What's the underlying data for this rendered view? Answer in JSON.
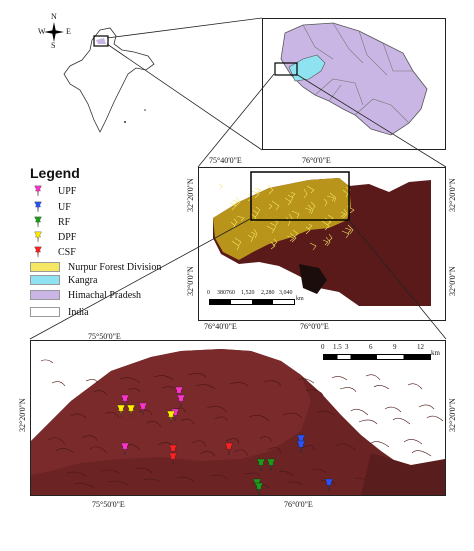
{
  "compass": {
    "n": "N",
    "s": "S",
    "e": "E",
    "w": "W"
  },
  "legend": {
    "title": "Legend",
    "items": [
      {
        "label": "UPF",
        "kind": "pin",
        "color": "#ff33cc"
      },
      {
        "label": "UF",
        "kind": "pin",
        "color": "#2a52ff"
      },
      {
        "label": "RF",
        "kind": "pin",
        "color": "#1a9e1a"
      },
      {
        "label": "DPF",
        "kind": "pin",
        "color": "#ffee00"
      },
      {
        "label": "CSF",
        "kind": "pin",
        "color": "#ff2020"
      },
      {
        "label": "Nurpur Forest Division",
        "kind": "swatch",
        "color": "#f5e663"
      },
      {
        "label": "Kangra",
        "kind": "swatch",
        "color": "#8fe3f0"
      },
      {
        "label": "Himachal Pradesh",
        "kind": "swatch",
        "color": "#c9b6e4"
      },
      {
        "label": "India",
        "kind": "swatch",
        "color": "#ffffff"
      }
    ]
  },
  "mid_map": {
    "lon_top": [
      "75°40'0\"E",
      "76°0'0\"E"
    ],
    "lon_bottom": [
      "76°40'0\"E",
      "76°0'0\"E"
    ],
    "lat_left": [
      "32°20'0\"N",
      "32°0'0\"N"
    ],
    "lat_right": [
      "32°20'0\"N",
      "32°0'0\"N"
    ],
    "scale_ticks": [
      "0",
      "380760",
      "1,520",
      "2,280",
      "3,040"
    ],
    "scale_unit": "km"
  },
  "bottom_map": {
    "lon_top": "75°50'0\"E",
    "lon_bottom": [
      "75°50'0\"E",
      "76°0'0\"E"
    ],
    "lat_left": "32°20'0\"N",
    "lat_right": "32°20'0\"N",
    "scale_ticks": [
      "0",
      "1.5",
      "3",
      "6",
      "9",
      "12"
    ],
    "scale_unit": "km",
    "sites": [
      {
        "type": "UPF",
        "color": "#ff33cc"
      },
      {
        "type": "UPF",
        "color": "#ff33cc"
      },
      {
        "type": "UPF",
        "color": "#ff33cc"
      },
      {
        "type": "UPF",
        "color": "#ff33cc"
      },
      {
        "type": "UPF",
        "color": "#ff33cc"
      },
      {
        "type": "UPF",
        "color": "#ff33cc"
      },
      {
        "type": "DPF",
        "color": "#ffee00"
      },
      {
        "type": "DPF",
        "color": "#ffee00"
      },
      {
        "type": "DPF",
        "color": "#ffee00"
      },
      {
        "type": "CSF",
        "color": "#ff2020"
      },
      {
        "type": "CSF",
        "color": "#ff2020"
      },
      {
        "type": "CSF",
        "color": "#ff2020"
      },
      {
        "type": "RF",
        "color": "#1a9e1a"
      },
      {
        "type": "RF",
        "color": "#1a9e1a"
      },
      {
        "type": "RF",
        "color": "#1a9e1a"
      },
      {
        "type": "RF",
        "color": "#1a9e1a"
      },
      {
        "type": "UF",
        "color": "#2a52ff"
      },
      {
        "type": "UF",
        "color": "#2a52ff"
      },
      {
        "type": "UF",
        "color": "#2a52ff"
      }
    ]
  }
}
